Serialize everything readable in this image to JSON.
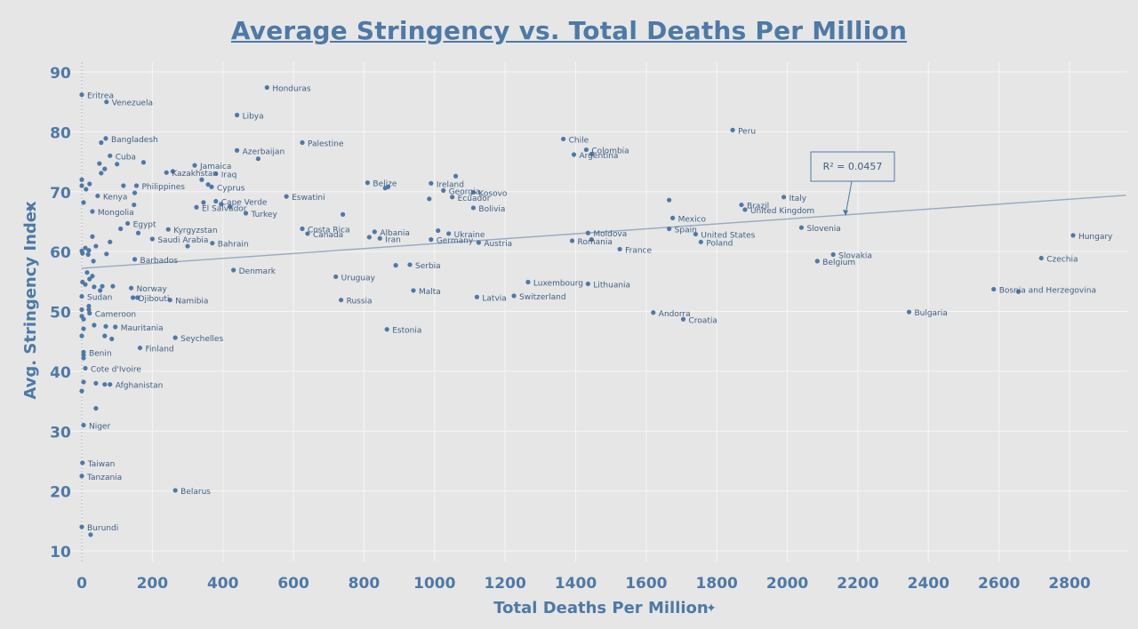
{
  "chart_data": {
    "type": "scatter",
    "title": "Average Stringency vs. Total Deaths Per Million",
    "xlabel": "Total Deaths Per Million",
    "ylabel": "Avg. Stringency Index",
    "xlim": [
      -30,
      2960
    ],
    "ylim": [
      8,
      92
    ],
    "xticks": [
      0,
      200,
      400,
      600,
      800,
      1000,
      1200,
      1400,
      1600,
      1800,
      2000,
      2200,
      2400,
      2600,
      2800
    ],
    "yticks": [
      10,
      20,
      30,
      40,
      50,
      60,
      70,
      80,
      90
    ],
    "grid": true,
    "point_color": "#4e79a7",
    "trendline": {
      "x": [
        0,
        2960
      ],
      "y": [
        57.2,
        69.4
      ],
      "r_squared_label": "R² = 0.0457",
      "color": "#97a9c0"
    },
    "points": [
      {
        "label": "Eritrea",
        "x": 0,
        "y": 86.2
      },
      {
        "label": "Venezuela",
        "x": 70,
        "y": 85.0
      },
      {
        "label": "Honduras",
        "x": 525,
        "y": 87.4
      },
      {
        "label": "Libya",
        "x": 440,
        "y": 82.8
      },
      {
        "label": "Bangladesh",
        "x": 68,
        "y": 78.9
      },
      {
        "label": "",
        "x": 55,
        "y": 78.2
      },
      {
        "label": "Palestine",
        "x": 625,
        "y": 78.2
      },
      {
        "label": "Cuba",
        "x": 80,
        "y": 76.0
      },
      {
        "label": "Azerbaijan",
        "x": 440,
        "y": 76.9
      },
      {
        "label": "",
        "x": 500,
        "y": 75.5
      },
      {
        "label": "",
        "x": 50,
        "y": 74.7
      },
      {
        "label": "",
        "x": 100,
        "y": 74.6
      },
      {
        "label": "",
        "x": 175,
        "y": 74.9
      },
      {
        "label": "Jamaica",
        "x": 320,
        "y": 74.4
      },
      {
        "label": "Kazakhstan",
        "x": 240,
        "y": 73.2
      },
      {
        "label": "",
        "x": 258,
        "y": 73.4
      },
      {
        "label": "Iraq",
        "x": 380,
        "y": 73.0
      },
      {
        "label": "",
        "x": 65,
        "y": 73.8
      },
      {
        "label": "",
        "x": 55,
        "y": 73.1
      },
      {
        "label": "",
        "x": 0,
        "y": 72.0
      },
      {
        "label": "",
        "x": 22,
        "y": 71.3
      },
      {
        "label": "",
        "x": 0,
        "y": 71.0
      },
      {
        "label": "",
        "x": 12,
        "y": 70.4
      },
      {
        "label": "Philippines",
        "x": 155,
        "y": 71.0
      },
      {
        "label": "",
        "x": 118,
        "y": 71.0
      },
      {
        "label": "",
        "x": 340,
        "y": 72.0
      },
      {
        "label": "",
        "x": 358,
        "y": 71.2
      },
      {
        "label": "Cyprus",
        "x": 368,
        "y": 70.8
      },
      {
        "label": "Cape Verde",
        "x": 380,
        "y": 68.4
      },
      {
        "label": "Kenya",
        "x": 45,
        "y": 69.3
      },
      {
        "label": "",
        "x": 150,
        "y": 69.8
      },
      {
        "label": "",
        "x": 345,
        "y": 68.2
      },
      {
        "label": "",
        "x": 395,
        "y": 67.9
      },
      {
        "label": "El Salvador",
        "x": 325,
        "y": 67.4
      },
      {
        "label": "",
        "x": 420,
        "y": 67.5
      },
      {
        "label": "",
        "x": 5,
        "y": 68.2
      },
      {
        "label": "",
        "x": 148,
        "y": 67.8
      },
      {
        "label": "Mongolia",
        "x": 30,
        "y": 66.7
      },
      {
        "label": "Turkey",
        "x": 465,
        "y": 66.4
      },
      {
        "label": "Eswatini",
        "x": 580,
        "y": 69.2
      },
      {
        "label": "Egypt",
        "x": 130,
        "y": 64.7
      },
      {
        "label": "Kyrgyzstan",
        "x": 245,
        "y": 63.7
      },
      {
        "label": "",
        "x": 110,
        "y": 63.8
      },
      {
        "label": "",
        "x": 160,
        "y": 63.1
      },
      {
        "label": "",
        "x": 30,
        "y": 62.5
      },
      {
        "label": "Saudi Arabia",
        "x": 200,
        "y": 62.1
      },
      {
        "label": "",
        "x": 40,
        "y": 60.9
      },
      {
        "label": "",
        "x": 80,
        "y": 61.6
      },
      {
        "label": "Bahrain",
        "x": 370,
        "y": 61.4
      },
      {
        "label": "",
        "x": 300,
        "y": 60.9
      },
      {
        "label": "",
        "x": 0,
        "y": 60.1
      },
      {
        "label": "",
        "x": 10,
        "y": 60.6
      },
      {
        "label": "",
        "x": 20,
        "y": 60.2
      },
      {
        "label": "",
        "x": 2,
        "y": 59.7
      },
      {
        "label": "",
        "x": 18,
        "y": 59.5
      },
      {
        "label": "",
        "x": 70,
        "y": 59.6
      },
      {
        "label": "",
        "x": 33,
        "y": 58.4
      },
      {
        "label": "Barbados",
        "x": 150,
        "y": 58.7
      },
      {
        "label": "Denmark",
        "x": 430,
        "y": 56.9
      },
      {
        "label": "",
        "x": 15,
        "y": 56.5
      },
      {
        "label": "",
        "x": 30,
        "y": 55.9
      },
      {
        "label": "",
        "x": 22,
        "y": 55.4
      },
      {
        "label": "",
        "x": 2,
        "y": 54.9
      },
      {
        "label": "",
        "x": 10,
        "y": 54.5
      },
      {
        "label": "",
        "x": 35,
        "y": 54.1
      },
      {
        "label": "",
        "x": 58,
        "y": 54.2
      },
      {
        "label": "",
        "x": 88,
        "y": 54.2
      },
      {
        "label": "Norway",
        "x": 140,
        "y": 53.9
      },
      {
        "label": "",
        "x": 52,
        "y": 53.5
      },
      {
        "label": "Sudan",
        "x": 0,
        "y": 52.5
      },
      {
        "label": "Djibouti",
        "x": 145,
        "y": 52.3
      },
      {
        "label": "",
        "x": 158,
        "y": 52.3
      },
      {
        "label": "Namibia",
        "x": 250,
        "y": 51.9
      },
      {
        "label": "",
        "x": 20,
        "y": 50.9
      },
      {
        "label": "",
        "x": 20,
        "y": 50.3
      },
      {
        "label": "",
        "x": 0,
        "y": 50.3
      },
      {
        "label": "Cameroon",
        "x": 22,
        "y": 49.7
      },
      {
        "label": "",
        "x": 0,
        "y": 49.2
      },
      {
        "label": "",
        "x": 5,
        "y": 48.7
      },
      {
        "label": "",
        "x": 35,
        "y": 47.7
      },
      {
        "label": "",
        "x": 68,
        "y": 47.5
      },
      {
        "label": "Mauritania",
        "x": 95,
        "y": 47.4
      },
      {
        "label": "",
        "x": 5,
        "y": 47.1
      },
      {
        "label": "",
        "x": 0,
        "y": 45.9
      },
      {
        "label": "",
        "x": 65,
        "y": 45.9
      },
      {
        "label": "",
        "x": 85,
        "y": 45.4
      },
      {
        "label": "Seychelles",
        "x": 265,
        "y": 45.6
      },
      {
        "label": "Finland",
        "x": 165,
        "y": 43.9
      },
      {
        "label": "Benin",
        "x": 5,
        "y": 43.2
      },
      {
        "label": "",
        "x": 5,
        "y": 42.7
      },
      {
        "label": "",
        "x": 5,
        "y": 42.2
      },
      {
        "label": "Cote d'Ivoire",
        "x": 10,
        "y": 40.5
      },
      {
        "label": "",
        "x": 5,
        "y": 38.2
      },
      {
        "label": "",
        "x": 40,
        "y": 38.0
      },
      {
        "label": "",
        "x": 65,
        "y": 37.8
      },
      {
        "label": "Afghanistan",
        "x": 80,
        "y": 37.8
      },
      {
        "label": "",
        "x": 0,
        "y": 36.7
      },
      {
        "label": "",
        "x": 40,
        "y": 33.8
      },
      {
        "label": "Niger",
        "x": 5,
        "y": 31.0
      },
      {
        "label": "Taiwan",
        "x": 2,
        "y": 24.7
      },
      {
        "label": "Tanzania",
        "x": 0,
        "y": 22.5
      },
      {
        "label": "Belarus",
        "x": 265,
        "y": 20.1
      },
      {
        "label": "Burundi",
        "x": 0,
        "y": 14.0
      },
      {
        "label": "",
        "x": 25,
        "y": 12.7
      },
      {
        "label": "Belize",
        "x": 810,
        "y": 71.5
      },
      {
        "label": "",
        "x": 860,
        "y": 70.6
      },
      {
        "label": "",
        "x": 868,
        "y": 70.8
      },
      {
        "label": "Ireland",
        "x": 990,
        "y": 71.4
      },
      {
        "label": "",
        "x": 1060,
        "y": 72.6
      },
      {
        "label": "Georgia",
        "x": 1025,
        "y": 70.2
      },
      {
        "label": "",
        "x": 985,
        "y": 68.8
      },
      {
        "label": "Ecuador",
        "x": 1050,
        "y": 69.1
      },
      {
        "label": "Kosovo",
        "x": 1110,
        "y": 69.9
      },
      {
        "label": "Bolivia",
        "x": 1110,
        "y": 67.3
      },
      {
        "label": "",
        "x": 740,
        "y": 66.2
      },
      {
        "label": "Costa Rica",
        "x": 625,
        "y": 63.8
      },
      {
        "label": "Canada",
        "x": 640,
        "y": 63.0
      },
      {
        "label": "Albania",
        "x": 830,
        "y": 63.3
      },
      {
        "label": "",
        "x": 815,
        "y": 62.4
      },
      {
        "label": "Iran",
        "x": 845,
        "y": 62.2
      },
      {
        "label": "",
        "x": 1010,
        "y": 63.5
      },
      {
        "label": "Ukraine",
        "x": 1040,
        "y": 63.0
      },
      {
        "label": "Germany",
        "x": 990,
        "y": 62.0
      },
      {
        "label": "Austria",
        "x": 1125,
        "y": 61.5
      },
      {
        "label": "",
        "x": 890,
        "y": 57.7
      },
      {
        "label": "Serbia",
        "x": 930,
        "y": 57.8
      },
      {
        "label": "Uruguay",
        "x": 720,
        "y": 55.8
      },
      {
        "label": "Malta",
        "x": 940,
        "y": 53.5
      },
      {
        "label": "Russia",
        "x": 735,
        "y": 51.9
      },
      {
        "label": "Estonia",
        "x": 865,
        "y": 47.0
      },
      {
        "label": "Latvia",
        "x": 1120,
        "y": 52.4
      },
      {
        "label": "Switzerland",
        "x": 1225,
        "y": 52.6
      },
      {
        "label": "Luxembourg",
        "x": 1265,
        "y": 54.9
      },
      {
        "label": "Lithuania",
        "x": 1435,
        "y": 54.6
      },
      {
        "label": "Chile",
        "x": 1365,
        "y": 78.8
      },
      {
        "label": "Colombia",
        "x": 1430,
        "y": 77.0
      },
      {
        "label": "Argentina",
        "x": 1395,
        "y": 76.2
      },
      {
        "label": "",
        "x": 1445,
        "y": 76.3
      },
      {
        "label": "Peru",
        "x": 1845,
        "y": 80.3
      },
      {
        "label": "",
        "x": 1665,
        "y": 68.6
      },
      {
        "label": "Mexico",
        "x": 1675,
        "y": 65.6
      },
      {
        "label": "Spain",
        "x": 1665,
        "y": 63.8
      },
      {
        "label": "Brazil",
        "x": 1870,
        "y": 67.8
      },
      {
        "label": "United Kingdom",
        "x": 1880,
        "y": 67.0
      },
      {
        "label": "Italy",
        "x": 1990,
        "y": 69.1
      },
      {
        "label": "Moldova",
        "x": 1435,
        "y": 63.1
      },
      {
        "label": "Romania",
        "x": 1390,
        "y": 61.8
      },
      {
        "label": "",
        "x": 1445,
        "y": 62.0
      },
      {
        "label": "France",
        "x": 1525,
        "y": 60.4
      },
      {
        "label": "United States",
        "x": 1740,
        "y": 62.9
      },
      {
        "label": "Poland",
        "x": 1755,
        "y": 61.6
      },
      {
        "label": "Slovenia",
        "x": 2040,
        "y": 64.0
      },
      {
        "label": "Belgium",
        "x": 2085,
        "y": 58.4
      },
      {
        "label": "Slovakia",
        "x": 2130,
        "y": 59.5
      },
      {
        "label": "Andorra",
        "x": 1620,
        "y": 49.8
      },
      {
        "label": "Croatia",
        "x": 1705,
        "y": 48.7
      },
      {
        "label": "Bulgaria",
        "x": 2345,
        "y": 49.9
      },
      {
        "label": "Bosnia and Herzegovina",
        "x": 2585,
        "y": 53.7
      },
      {
        "label": "",
        "x": 2655,
        "y": 53.3
      },
      {
        "label": "Czechia",
        "x": 2720,
        "y": 58.9
      },
      {
        "label": "Hungary",
        "x": 2810,
        "y": 62.7
      }
    ]
  }
}
